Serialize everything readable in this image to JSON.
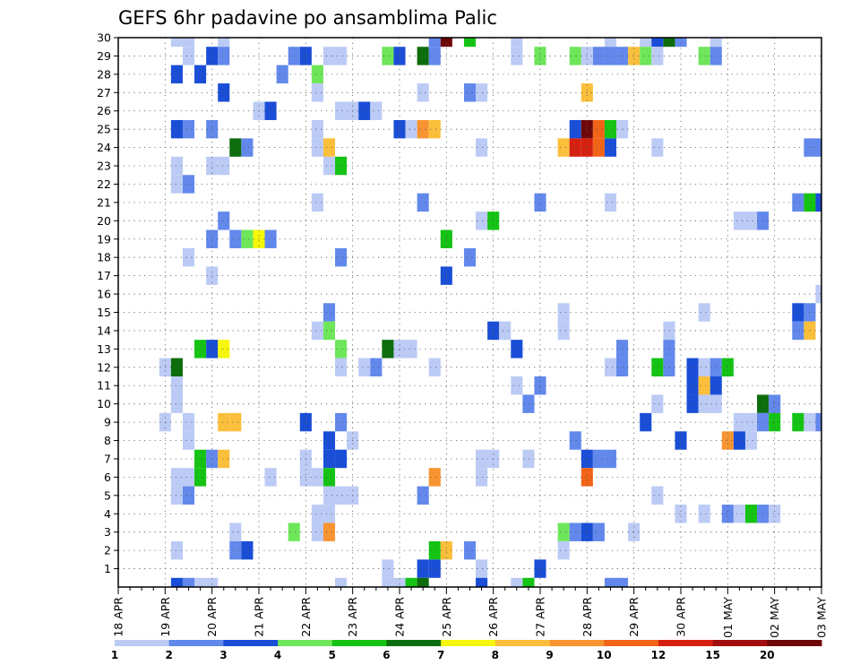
{
  "chart_data": {
    "type": "heatmap",
    "title": "GEFS 6hr padavine po ansamblima Palic",
    "x_tick_labels": [
      "18 APR",
      "19 APR",
      "20 APR",
      "21 APR",
      "22 APR",
      "23 APR",
      "24 APR",
      "25 APR",
      "26 APR",
      "27 APR",
      "28 APR",
      "29 APR",
      "30 APR",
      "01 MAY",
      "02 MAY",
      "03 MAY"
    ],
    "y_tick_labels": [
      "1",
      "2",
      "3",
      "4",
      "5",
      "6",
      "7",
      "8",
      "9",
      "10",
      "11",
      "12",
      "13",
      "14",
      "15",
      "16",
      "17",
      "18",
      "19",
      "20",
      "21",
      "22",
      "23",
      "24",
      "25",
      "26",
      "27",
      "28",
      "29",
      "30"
    ],
    "x_steps": 61,
    "y_members": 31,
    "grid": "dotted",
    "colorbar": {
      "position": "bottom",
      "labels": [
        "1",
        "2",
        "3",
        "4",
        "5",
        "6",
        "7",
        "8",
        "9",
        "10",
        "12",
        "15",
        "20"
      ],
      "colors": [
        "#bccbf5",
        "#6288ec",
        "#1a4ed7",
        "#6ee65a",
        "#15c315",
        "#0d6d0d",
        "#f6f60a",
        "#fbbf3c",
        "#f89432",
        "#f26418",
        "#d62110",
        "#a20e0e",
        "#6e0808"
      ]
    },
    "cells": [
      [
        5,
        30,
        0
      ],
      [
        6,
        30,
        0
      ],
      [
        9,
        30,
        0
      ],
      [
        27,
        30,
        1
      ],
      [
        28,
        30,
        12
      ],
      [
        30,
        30,
        4
      ],
      [
        34,
        30,
        0
      ],
      [
        42,
        30,
        0
      ],
      [
        45,
        30,
        0
      ],
      [
        46,
        30,
        2
      ],
      [
        47,
        30,
        5
      ],
      [
        48,
        30,
        1
      ],
      [
        51,
        30,
        0
      ],
      [
        6,
        29,
        0
      ],
      [
        8,
        29,
        2
      ],
      [
        9,
        29,
        1
      ],
      [
        15,
        29,
        1
      ],
      [
        16,
        29,
        2
      ],
      [
        18,
        29,
        0
      ],
      [
        19,
        29,
        0
      ],
      [
        23,
        29,
        3
      ],
      [
        24,
        29,
        2
      ],
      [
        26,
        29,
        5
      ],
      [
        27,
        29,
        1
      ],
      [
        34,
        29,
        0
      ],
      [
        36,
        29,
        3
      ],
      [
        39,
        29,
        3
      ],
      [
        40,
        29,
        0
      ],
      [
        41,
        29,
        1
      ],
      [
        42,
        29,
        1
      ],
      [
        43,
        29,
        1
      ],
      [
        44,
        29,
        7
      ],
      [
        45,
        29,
        3
      ],
      [
        46,
        29,
        0
      ],
      [
        50,
        29,
        3
      ],
      [
        51,
        29,
        1
      ],
      [
        5,
        28,
        2
      ],
      [
        7,
        28,
        2
      ],
      [
        14,
        28,
        1
      ],
      [
        17,
        28,
        3
      ],
      [
        9,
        27,
        2
      ],
      [
        17,
        27,
        0
      ],
      [
        26,
        27,
        0
      ],
      [
        30,
        27,
        1
      ],
      [
        31,
        27,
        0
      ],
      [
        40,
        27,
        7
      ],
      [
        12,
        26,
        0
      ],
      [
        13,
        26,
        2
      ],
      [
        19,
        26,
        0
      ],
      [
        20,
        26,
        0
      ],
      [
        21,
        26,
        2
      ],
      [
        22,
        26,
        0
      ],
      [
        5,
        25,
        2
      ],
      [
        6,
        25,
        1
      ],
      [
        8,
        25,
        1
      ],
      [
        17,
        25,
        0
      ],
      [
        24,
        25,
        2
      ],
      [
        25,
        25,
        0
      ],
      [
        26,
        25,
        8
      ],
      [
        27,
        25,
        7
      ],
      [
        39,
        25,
        2
      ],
      [
        40,
        25,
        12
      ],
      [
        41,
        25,
        9
      ],
      [
        42,
        25,
        4
      ],
      [
        43,
        25,
        0
      ],
      [
        10,
        24,
        5
      ],
      [
        11,
        24,
        1
      ],
      [
        17,
        24,
        0
      ],
      [
        18,
        24,
        7
      ],
      [
        31,
        24,
        0
      ],
      [
        38,
        24,
        7
      ],
      [
        39,
        24,
        10
      ],
      [
        40,
        24,
        10
      ],
      [
        41,
        24,
        9
      ],
      [
        42,
        24,
        2
      ],
      [
        46,
        24,
        0
      ],
      [
        59,
        24,
        1
      ],
      [
        60,
        24,
        1
      ],
      [
        5,
        23,
        0
      ],
      [
        8,
        23,
        0
      ],
      [
        9,
        23,
        0
      ],
      [
        18,
        23,
        0
      ],
      [
        19,
        23,
        4
      ],
      [
        5,
        22,
        0
      ],
      [
        6,
        22,
        1
      ],
      [
        17,
        21,
        0
      ],
      [
        26,
        21,
        1
      ],
      [
        36,
        21,
        1
      ],
      [
        42,
        21,
        0
      ],
      [
        58,
        21,
        1
      ],
      [
        59,
        21,
        4
      ],
      [
        60,
        21,
        2
      ],
      [
        9,
        20,
        1
      ],
      [
        31,
        20,
        0
      ],
      [
        32,
        20,
        4
      ],
      [
        53,
        20,
        0
      ],
      [
        54,
        20,
        0
      ],
      [
        55,
        20,
        1
      ],
      [
        8,
        19,
        1
      ],
      [
        10,
        19,
        1
      ],
      [
        11,
        19,
        3
      ],
      [
        12,
        19,
        6
      ],
      [
        13,
        19,
        1
      ],
      [
        28,
        19,
        4
      ],
      [
        6,
        18,
        0
      ],
      [
        19,
        18,
        1
      ],
      [
        30,
        18,
        1
      ],
      [
        8,
        17,
        0
      ],
      [
        28,
        17,
        2
      ],
      [
        60,
        16,
        0
      ],
      [
        18,
        15,
        1
      ],
      [
        38,
        15,
        0
      ],
      [
        50,
        15,
        0
      ],
      [
        58,
        15,
        2
      ],
      [
        59,
        15,
        1
      ],
      [
        17,
        14,
        0
      ],
      [
        18,
        14,
        3
      ],
      [
        32,
        14,
        2
      ],
      [
        33,
        14,
        0
      ],
      [
        38,
        14,
        0
      ],
      [
        47,
        14,
        0
      ],
      [
        58,
        14,
        1
      ],
      [
        59,
        14,
        7
      ],
      [
        7,
        13,
        4
      ],
      [
        8,
        13,
        2
      ],
      [
        9,
        13,
        6
      ],
      [
        19,
        13,
        3
      ],
      [
        23,
        13,
        5
      ],
      [
        24,
        13,
        0
      ],
      [
        25,
        13,
        0
      ],
      [
        34,
        13,
        2
      ],
      [
        43,
        13,
        1
      ],
      [
        47,
        13,
        1
      ],
      [
        4,
        12,
        0
      ],
      [
        5,
        12,
        5
      ],
      [
        19,
        12,
        0
      ],
      [
        21,
        12,
        0
      ],
      [
        22,
        12,
        1
      ],
      [
        27,
        12,
        0
      ],
      [
        42,
        12,
        0
      ],
      [
        43,
        12,
        1
      ],
      [
        46,
        12,
        4
      ],
      [
        47,
        12,
        1
      ],
      [
        49,
        12,
        2
      ],
      [
        50,
        12,
        0
      ],
      [
        51,
        12,
        1
      ],
      [
        52,
        12,
        4
      ],
      [
        5,
        11,
        0
      ],
      [
        34,
        11,
        0
      ],
      [
        36,
        11,
        1
      ],
      [
        49,
        11,
        2
      ],
      [
        50,
        11,
        7
      ],
      [
        51,
        11,
        2
      ],
      [
        5,
        10,
        0
      ],
      [
        35,
        10,
        1
      ],
      [
        46,
        10,
        0
      ],
      [
        49,
        10,
        2
      ],
      [
        50,
        10,
        0
      ],
      [
        51,
        10,
        0
      ],
      [
        55,
        10,
        5
      ],
      [
        56,
        10,
        1
      ],
      [
        4,
        9,
        0
      ],
      [
        6,
        9,
        0
      ],
      [
        9,
        9,
        7
      ],
      [
        10,
        9,
        7
      ],
      [
        16,
        9,
        2
      ],
      [
        19,
        9,
        1
      ],
      [
        45,
        9,
        2
      ],
      [
        53,
        9,
        0
      ],
      [
        54,
        9,
        0
      ],
      [
        55,
        9,
        1
      ],
      [
        56,
        9,
        4
      ],
      [
        58,
        9,
        4
      ],
      [
        59,
        9,
        0
      ],
      [
        60,
        9,
        1
      ],
      [
        6,
        8,
        0
      ],
      [
        18,
        8,
        2
      ],
      [
        20,
        8,
        0
      ],
      [
        39,
        8,
        1
      ],
      [
        48,
        8,
        2
      ],
      [
        52,
        8,
        8
      ],
      [
        53,
        8,
        2
      ],
      [
        54,
        8,
        0
      ],
      [
        7,
        7,
        4
      ],
      [
        8,
        7,
        1
      ],
      [
        9,
        7,
        7
      ],
      [
        16,
        7,
        0
      ],
      [
        18,
        7,
        2
      ],
      [
        19,
        7,
        2
      ],
      [
        31,
        7,
        0
      ],
      [
        32,
        7,
        0
      ],
      [
        35,
        7,
        0
      ],
      [
        40,
        7,
        2
      ],
      [
        41,
        7,
        1
      ],
      [
        42,
        7,
        1
      ],
      [
        5,
        6,
        0
      ],
      [
        6,
        6,
        0
      ],
      [
        7,
        6,
        4
      ],
      [
        13,
        6,
        0
      ],
      [
        16,
        6,
        0
      ],
      [
        17,
        6,
        0
      ],
      [
        18,
        6,
        4
      ],
      [
        27,
        6,
        8
      ],
      [
        31,
        6,
        0
      ],
      [
        40,
        6,
        9
      ],
      [
        5,
        5,
        0
      ],
      [
        6,
        5,
        1
      ],
      [
        18,
        5,
        0
      ],
      [
        19,
        5,
        0
      ],
      [
        20,
        5,
        0
      ],
      [
        26,
        5,
        1
      ],
      [
        46,
        5,
        0
      ],
      [
        17,
        4,
        0
      ],
      [
        18,
        4,
        0
      ],
      [
        48,
        4,
        0
      ],
      [
        50,
        4,
        0
      ],
      [
        52,
        4,
        1
      ],
      [
        53,
        4,
        0
      ],
      [
        54,
        4,
        4
      ],
      [
        55,
        4,
        1
      ],
      [
        56,
        4,
        0
      ],
      [
        10,
        3,
        0
      ],
      [
        15,
        3,
        3
      ],
      [
        17,
        3,
        0
      ],
      [
        18,
        3,
        8
      ],
      [
        38,
        3,
        3
      ],
      [
        39,
        3,
        1
      ],
      [
        40,
        3,
        2
      ],
      [
        41,
        3,
        1
      ],
      [
        44,
        3,
        0
      ],
      [
        5,
        2,
        0
      ],
      [
        10,
        2,
        1
      ],
      [
        11,
        2,
        2
      ],
      [
        27,
        2,
        4
      ],
      [
        28,
        2,
        7
      ],
      [
        30,
        2,
        1
      ],
      [
        38,
        2,
        0
      ],
      [
        23,
        1,
        0
      ],
      [
        26,
        1,
        2
      ],
      [
        27,
        1,
        2
      ],
      [
        31,
        1,
        0
      ],
      [
        36,
        1,
        2
      ],
      [
        5,
        0,
        2
      ],
      [
        6,
        0,
        1
      ],
      [
        7,
        0,
        0
      ],
      [
        8,
        0,
        0
      ],
      [
        19,
        0,
        0
      ],
      [
        23,
        0,
        0
      ],
      [
        24,
        0,
        0
      ],
      [
        25,
        0,
        4
      ],
      [
        26,
        0,
        5
      ],
      [
        31,
        0,
        2
      ],
      [
        34,
        0,
        0
      ],
      [
        35,
        0,
        4
      ],
      [
        42,
        0,
        1
      ],
      [
        43,
        0,
        1
      ]
    ]
  }
}
